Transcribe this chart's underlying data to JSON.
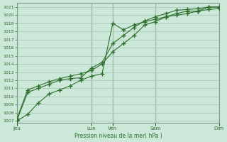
{
  "bg_color": "#cce8d8",
  "grid_color": "#a8c8b8",
  "line_color": "#2d6e2d",
  "marker_color": "#2d6e2d",
  "xlabel": "Pression niveau de la mer( hPa )",
  "ylim": [
    1006.8,
    1021.5
  ],
  "yticks": [
    1007,
    1008,
    1009,
    1010,
    1011,
    1012,
    1013,
    1014,
    1015,
    1016,
    1017,
    1018,
    1019,
    1020,
    1021
  ],
  "xlim": [
    0,
    9.5
  ],
  "x_day_labels": [
    "Jeu",
    "Lun",
    "Ven",
    "Sam",
    "Dim"
  ],
  "x_day_positions": [
    0,
    3.5,
    4.5,
    6.5,
    9.5
  ],
  "series1_x": [
    0,
    0.5,
    1.0,
    1.5,
    2.0,
    2.5,
    3.0,
    3.5,
    4.0,
    4.5,
    5.0,
    5.5,
    6.0,
    6.5,
    7.0,
    7.5,
    8.0,
    8.5,
    9.0,
    9.5
  ],
  "series1_y": [
    1007.0,
    1007.8,
    1009.2,
    1010.3,
    1010.8,
    1011.3,
    1012.0,
    1012.5,
    1012.8,
    1019.0,
    1018.2,
    1018.8,
    1019.2,
    1019.5,
    1019.8,
    1020.2,
    1020.5,
    1020.5,
    1021.0,
    1021.0
  ],
  "series2_x": [
    0,
    0.5,
    1.0,
    1.5,
    2.0,
    2.5,
    3.0,
    3.5,
    4.0,
    4.5,
    5.0,
    5.5,
    6.0,
    6.5,
    7.0,
    7.5,
    8.0,
    8.5,
    9.0,
    9.5
  ],
  "series2_y": [
    1007.1,
    1010.5,
    1011.0,
    1011.5,
    1012.0,
    1012.2,
    1012.3,
    1013.5,
    1014.2,
    1016.5,
    1017.5,
    1018.5,
    1019.3,
    1019.8,
    1020.2,
    1020.6,
    1020.7,
    1020.8,
    1021.0,
    1021.0
  ],
  "series3_x": [
    0,
    0.5,
    1.0,
    1.5,
    2.0,
    2.5,
    3.0,
    3.5,
    4.0,
    4.5,
    5.0,
    5.5,
    6.0,
    6.5,
    7.0,
    7.5,
    8.0,
    8.5,
    9.0,
    9.5
  ],
  "series3_y": [
    1007.3,
    1010.8,
    1011.3,
    1011.8,
    1012.2,
    1012.5,
    1012.8,
    1013.2,
    1014.0,
    1015.5,
    1016.5,
    1017.5,
    1018.8,
    1019.2,
    1019.8,
    1020.0,
    1020.2,
    1020.5,
    1020.7,
    1020.8
  ]
}
